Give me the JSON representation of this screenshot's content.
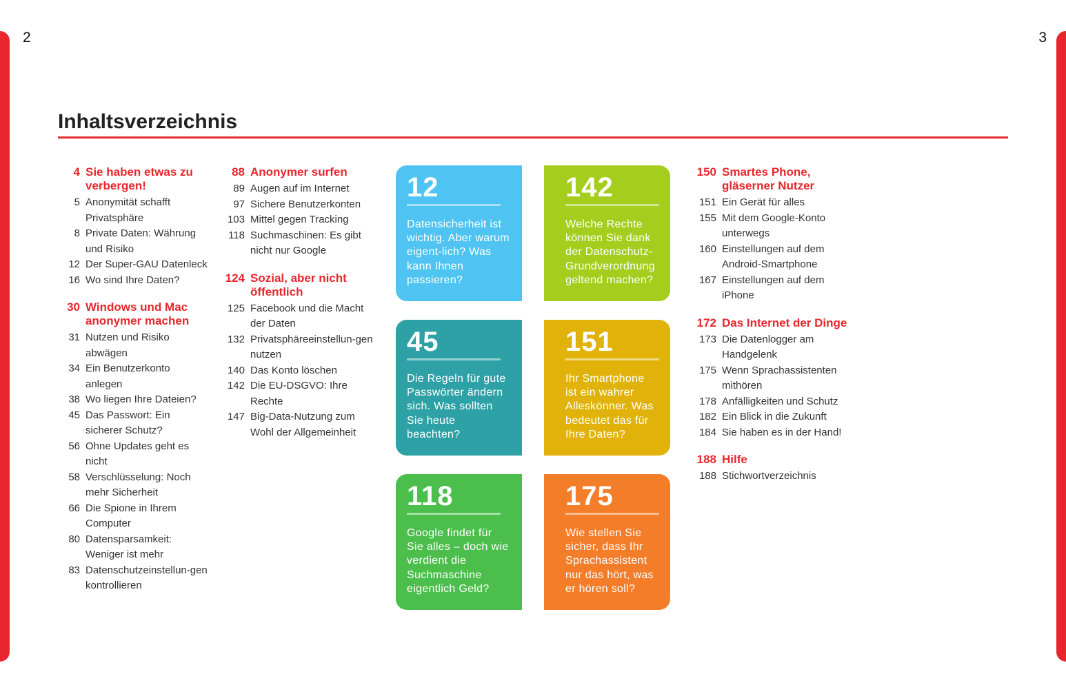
{
  "page_numbers": {
    "left": "2",
    "right": "3"
  },
  "title": "Inhaltsverzeichnis",
  "colors": {
    "accent": "#e8262d"
  },
  "columns": [
    [
      {
        "num": "4",
        "title": "Sie haben etwas zu verbergen!",
        "entries": [
          {
            "num": "5",
            "text": "Anonymität schafft Privatsphäre"
          },
          {
            "num": "8",
            "text": "Private Daten: Währung und Risiko"
          },
          {
            "num": "12",
            "text": "Der Super-GAU Datenleck"
          },
          {
            "num": "16",
            "text": "Wo sind Ihre Daten?"
          }
        ]
      },
      {
        "num": "30",
        "title": "Windows und Mac anonymer machen",
        "entries": [
          {
            "num": "31",
            "text": "Nutzen und Risiko abwägen"
          },
          {
            "num": "34",
            "text": "Ein Benutzerkonto anlegen"
          },
          {
            "num": "38",
            "text": "Wo liegen Ihre Dateien?"
          },
          {
            "num": "45",
            "text": "Das Passwort: Ein sicherer Schutz?"
          },
          {
            "num": "56",
            "text": "Ohne Updates geht es nicht"
          },
          {
            "num": "58",
            "text": "Verschlüsselung: Noch mehr Sicherheit"
          },
          {
            "num": "66",
            "text": "Die Spione in Ihrem Computer"
          },
          {
            "num": "80",
            "text": "Datensparsamkeit: Weniger ist mehr"
          },
          {
            "num": "83",
            "text": "Datenschutzeinstellun-gen kontrollieren"
          }
        ]
      }
    ],
    [
      {
        "num": "88",
        "title": "Anonymer surfen",
        "entries": [
          {
            "num": "89",
            "text": "Augen auf im Internet"
          },
          {
            "num": "97",
            "text": "Sichere Benutzerkonten"
          },
          {
            "num": "103",
            "text": "Mittel gegen Tracking"
          },
          {
            "num": "118",
            "text": "Suchmaschinen: Es gibt nicht nur Google"
          }
        ]
      },
      {
        "num": "124",
        "title": "Sozial, aber nicht öffentlich",
        "entries": [
          {
            "num": "125",
            "text": "Facebook und die Macht der Daten"
          },
          {
            "num": "132",
            "text": "Privatsphäreeinstellun-gen nutzen"
          },
          {
            "num": "140",
            "text": "Das Konto löschen"
          },
          {
            "num": "142",
            "text": "Die EU-DSGVO: Ihre Rechte"
          },
          {
            "num": "147",
            "text": "Big-Data-Nutzung zum Wohl der Allgemeinheit"
          }
        ]
      }
    ],
    [
      {
        "num": "150",
        "title": "Smartes Phone, gläserner Nutzer",
        "entries": [
          {
            "num": "151",
            "text": "Ein Gerät für alles"
          },
          {
            "num": "155",
            "text": "Mit dem Google-Konto unterwegs"
          },
          {
            "num": "160",
            "text": "Einstellungen auf dem Android-Smartphone"
          },
          {
            "num": "167",
            "text": "Einstellungen auf dem iPhone"
          }
        ]
      },
      {
        "num": "172",
        "title": "Das Internet der Dinge",
        "entries": [
          {
            "num": "173",
            "text": "Die Datenlogger am Handgelenk"
          },
          {
            "num": "175",
            "text": "Wenn Sprachassistenten mithören"
          },
          {
            "num": "178",
            "text": "Anfälligkeiten und Schutz"
          },
          {
            "num": "182",
            "text": "Ein Blick in die Zukunft"
          },
          {
            "num": "184",
            "text": "Sie haben es in der Hand!"
          }
        ]
      },
      {
        "num": "188",
        "title": "Hilfe",
        "entries": [
          {
            "num": "188",
            "text": "Stichwortverzeichnis"
          }
        ]
      }
    ]
  ],
  "cards": [
    {
      "num": "12",
      "text": "Datensicherheit ist wichtig. Aber warum eigent-lich? Was kann Ihnen passieren?",
      "color": "#4fc4f2"
    },
    {
      "num": "142",
      "text": "Welche Rechte können Sie dank der Datenschutz-Grundverordnung geltend machen?",
      "color": "#a4cd1e"
    },
    {
      "num": "45",
      "text": "Die Regeln für gute Passwörter ändern sich. Was sollten Sie heute beachten?",
      "color": "#2ea1a6"
    },
    {
      "num": "151",
      "text": "Ihr Smartphone ist ein wahrer Alleskönner. Was bedeutet das für Ihre Daten?",
      "color": "#e0b20a"
    },
    {
      "num": "118",
      "text": "Google findet für Sie alles – doch wie verdient die Suchmaschine eigentlich Geld?",
      "color": "#4cbe4c"
    },
    {
      "num": "175",
      "text": "Wie stellen Sie sicher, dass Ihr Sprachassistent nur das hört, was er hören soll?",
      "color": "#f47d2a"
    }
  ]
}
